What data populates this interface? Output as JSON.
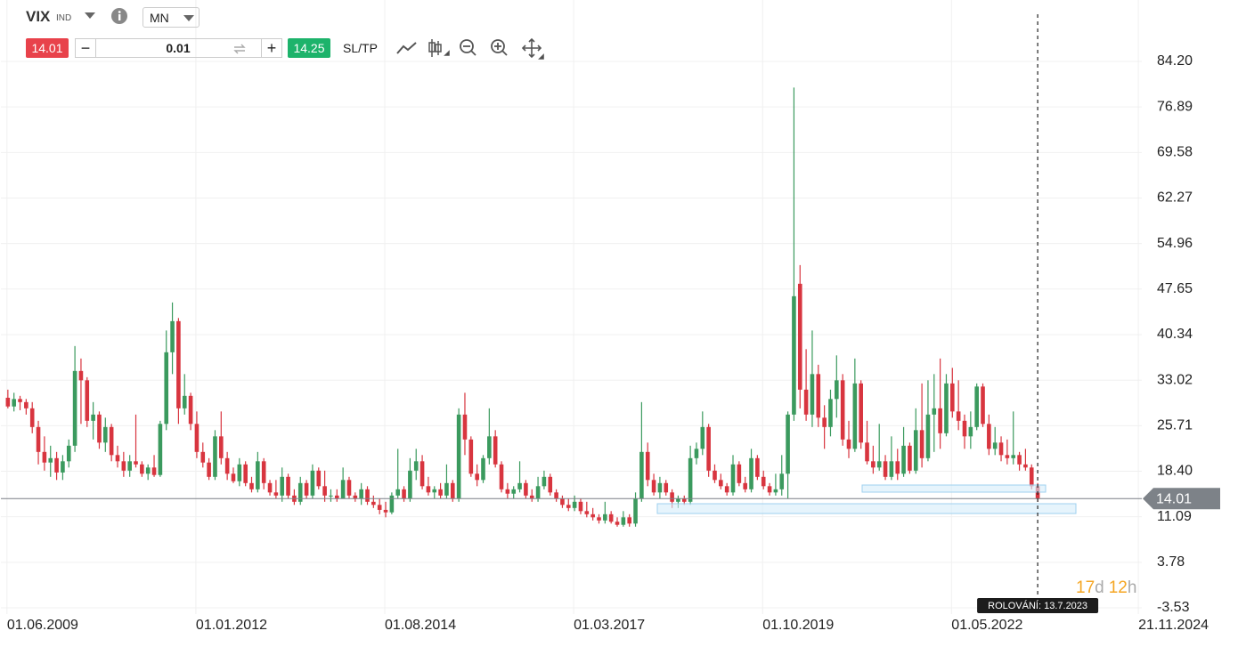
{
  "toolbar": {
    "symbol": "VIX",
    "symbol_type": "IND",
    "timeframe": "MN",
    "sell_price": "14.01",
    "quantity": "0.01",
    "buy_price": "14.25",
    "sl_tp": "SL/TP"
  },
  "chart_data": {
    "type": "candlestick",
    "x": [
      "01.06.2009",
      "01.07.2009",
      "01.08.2009",
      "01.09.2009",
      "01.10.2009",
      "01.11.2009",
      "01.12.2009",
      "01.01.2010",
      "01.02.2010",
      "01.03.2010",
      "01.04.2010",
      "01.05.2010",
      "01.06.2010",
      "01.07.2010",
      "01.08.2010",
      "01.09.2010",
      "01.10.2010",
      "01.11.2010",
      "01.12.2010",
      "01.01.2011",
      "01.02.2011",
      "01.03.2011",
      "01.04.2011",
      "01.05.2011",
      "01.06.2011",
      "01.07.2011",
      "01.08.2011",
      "01.09.2011",
      "01.10.2011",
      "01.11.2011",
      "01.12.2011",
      "01.01.2012",
      "01.02.2012",
      "01.03.2012",
      "01.04.2012",
      "01.05.2012",
      "01.06.2012",
      "01.07.2012",
      "01.08.2012",
      "01.09.2012",
      "01.10.2012",
      "01.11.2012",
      "01.12.2012",
      "01.01.2013",
      "01.02.2013",
      "01.03.2013",
      "01.04.2013",
      "01.05.2013",
      "01.06.2013",
      "01.07.2013",
      "01.08.2013",
      "01.09.2013",
      "01.10.2013",
      "01.11.2013",
      "01.12.2013",
      "01.01.2014",
      "01.02.2014",
      "01.03.2014",
      "01.04.2014",
      "01.05.2014",
      "01.06.2014",
      "01.07.2014",
      "01.08.2014",
      "01.09.2014",
      "01.10.2014",
      "01.11.2014",
      "01.12.2014",
      "01.01.2015",
      "01.02.2015",
      "01.03.2015",
      "01.04.2015",
      "01.05.2015",
      "01.06.2015",
      "01.07.2015",
      "01.08.2015",
      "01.09.2015",
      "01.10.2015",
      "01.11.2015",
      "01.12.2015",
      "01.01.2016",
      "01.02.2016",
      "01.03.2016",
      "01.04.2016",
      "01.05.2016",
      "01.06.2016",
      "01.07.2016",
      "01.08.2016",
      "01.09.2016",
      "01.10.2016",
      "01.11.2016",
      "01.12.2016",
      "01.01.2017",
      "01.02.2017",
      "01.03.2017",
      "01.04.2017",
      "01.05.2017",
      "01.06.2017",
      "01.07.2017",
      "01.08.2017",
      "01.09.2017",
      "01.10.2017",
      "01.11.2017",
      "01.12.2017",
      "01.01.2018",
      "01.02.2018",
      "01.03.2018",
      "01.04.2018",
      "01.05.2018",
      "01.06.2018",
      "01.07.2018",
      "01.08.2018",
      "01.09.2018",
      "01.10.2018",
      "01.11.2018",
      "01.12.2018",
      "01.01.2019",
      "01.02.2019",
      "01.03.2019",
      "01.04.2019",
      "01.05.2019",
      "01.06.2019",
      "01.07.2019",
      "01.08.2019",
      "01.09.2019",
      "01.10.2019",
      "01.11.2019",
      "01.12.2019",
      "01.01.2020",
      "01.02.2020",
      "01.03.2020",
      "01.04.2020",
      "01.05.2020",
      "01.06.2020",
      "01.07.2020",
      "01.08.2020",
      "01.09.2020",
      "01.10.2020",
      "01.11.2020",
      "01.12.2020",
      "01.01.2021",
      "01.02.2021",
      "01.03.2021",
      "01.04.2021",
      "01.05.2021",
      "01.06.2021",
      "01.07.2021",
      "01.08.2021",
      "01.09.2021",
      "01.10.2021",
      "01.11.2021",
      "01.12.2021",
      "01.01.2022",
      "01.02.2022",
      "01.03.2022",
      "01.04.2022",
      "01.05.2022",
      "01.06.2022",
      "01.07.2022",
      "01.08.2022",
      "01.09.2022",
      "01.10.2022",
      "01.11.2022",
      "01.12.2022",
      "01.01.2023",
      "01.02.2023",
      "01.03.2023",
      "01.04.2023",
      "01.05.2023",
      "01.06.2023",
      "01.07.2023"
    ],
    "open": [
      30.2,
      28.8,
      30.0,
      29.5,
      28.5,
      25.5,
      21.5,
      19.8,
      20.5,
      18.2,
      20.0,
      22.5,
      34.5,
      33.0,
      26.5,
      27.5,
      23.0,
      25.5,
      21.0,
      20.0,
      18.5,
      20.0,
      19.5,
      18.0,
      19.0,
      17.8,
      26.0,
      37.5,
      42.5,
      28.5,
      30.5,
      26.0,
      21.5,
      19.8,
      17.5,
      24.0,
      20.5,
      18.0,
      16.8,
      19.5,
      16.5,
      15.5,
      20.0,
      16.5,
      15.0,
      14.5,
      17.5,
      14.5,
      13.5,
      16.5,
      14.5,
      18.5,
      16.0,
      14.5,
      14.5,
      14.0,
      17.0,
      14.5,
      14.0,
      15.5,
      13.5,
      13.0,
      12.2,
      11.8,
      14.5,
      15.5,
      14.0,
      18.5,
      20.0,
      16.0,
      15.0,
      15.5,
      14.5,
      16.5,
      14.0,
      27.5,
      23.5,
      18.0,
      17.0,
      20.5,
      24.0,
      19.5,
      15.5,
      14.8,
      15.5,
      16.5,
      14.5,
      14.0,
      16.0,
      17.5,
      15.0,
      14.0,
      13.0,
      12.5,
      13.5,
      12.0,
      11.5,
      11.0,
      10.5,
      11.5,
      10.3,
      9.8,
      11.0,
      10.0,
      14.0,
      21.5,
      17.0,
      15.0,
      16.5,
      15.0,
      13.5,
      14.0,
      13.5,
      20.5,
      22.0,
      25.5,
      18.5,
      17.0,
      16.0,
      15.0,
      19.5,
      16.5,
      15.5,
      20.5,
      17.5,
      16.0,
      15.0,
      15.5,
      18.0,
      27.5,
      48.5,
      31.5,
      27.5,
      34.0,
      27.0,
      25.5,
      30.0,
      33.0,
      23.5,
      22.0,
      32.5,
      23.0,
      20.0,
      19.0,
      20.0,
      17.5,
      20.0,
      18.0,
      22.5,
      18.5,
      25.0,
      20.5,
      27.5,
      28.5,
      24.5,
      32.5,
      28.0,
      26.5,
      24.0,
      25.5,
      32.0,
      26.0,
      22.0,
      23.0,
      21.0,
      20.5,
      21.0,
      19.5,
      19.0,
      16.0
    ],
    "high": [
      31.5,
      31.0,
      30.5,
      30.0,
      29.5,
      26.5,
      24.0,
      22.5,
      21.5,
      21.0,
      23.5,
      38.5,
      36.5,
      33.5,
      29.5,
      28.0,
      27.0,
      26.0,
      22.5,
      21.5,
      21.0,
      27.5,
      20.0,
      19.5,
      21.0,
      26.5,
      41.0,
      45.5,
      43.0,
      34.0,
      31.0,
      28.0,
      23.0,
      20.5,
      25.0,
      28.0,
      21.5,
      19.0,
      20.5,
      20.0,
      17.5,
      21.5,
      20.5,
      17.0,
      17.0,
      19.0,
      18.0,
      15.5,
      17.5,
      17.0,
      19.5,
      19.0,
      18.5,
      15.5,
      15.5,
      19.0,
      17.5,
      15.0,
      16.5,
      16.0,
      14.5,
      14.0,
      13.5,
      15.0,
      22.0,
      16.0,
      20.5,
      22.0,
      21.0,
      17.5,
      16.0,
      16.5,
      19.5,
      17.0,
      28.5,
      31.0,
      24.0,
      19.5,
      21.0,
      28.5,
      25.0,
      20.0,
      16.5,
      16.0,
      20.0,
      17.0,
      15.5,
      17.5,
      18.5,
      18.0,
      15.5,
      14.5,
      14.0,
      14.5,
      14.0,
      13.5,
      12.5,
      11.5,
      13.5,
      12.0,
      11.0,
      12.0,
      11.5,
      15.0,
      29.5,
      23.0,
      18.0,
      17.5,
      17.0,
      15.5,
      14.5,
      14.5,
      22.5,
      23.0,
      28.0,
      26.0,
      19.5,
      18.0,
      16.5,
      21.0,
      20.0,
      17.5,
      22.0,
      21.0,
      18.5,
      16.5,
      18.0,
      21.0,
      28.0,
      80.0,
      51.5,
      38.0,
      41.0,
      35.5,
      29.0,
      31.5,
      37.0,
      34.0,
      26.5,
      36.5,
      33.0,
      26.5,
      22.5,
      26.0,
      21.0,
      24.0,
      22.0,
      25.5,
      23.0,
      28.5,
      32.5,
      33.0,
      34.0,
      36.5,
      34.0,
      35.0,
      33.0,
      27.5,
      28.0,
      32.5,
      32.5,
      27.5,
      25.5,
      24.0,
      23.5,
      28.0,
      21.5,
      22.0,
      19.5,
      16.5
    ],
    "low": [
      28.5,
      28.0,
      28.2,
      27.5,
      24.5,
      19.5,
      18.5,
      17.5,
      17.0,
      17.0,
      19.0,
      21.5,
      26.0,
      25.5,
      23.5,
      22.0,
      21.5,
      20.0,
      19.0,
      17.5,
      17.5,
      19.0,
      17.5,
      17.0,
      17.5,
      17.5,
      25.0,
      34.0,
      26.0,
      27.5,
      25.0,
      20.5,
      19.0,
      17.0,
      17.0,
      19.5,
      17.0,
      16.5,
      16.0,
      16.0,
      15.0,
      15.0,
      15.5,
      14.5,
      14.0,
      13.5,
      14.0,
      13.0,
      13.0,
      14.0,
      14.0,
      15.5,
      13.5,
      13.5,
      13.5,
      14.0,
      14.0,
      13.5,
      13.0,
      13.0,
      12.5,
      11.5,
      11.0,
      11.5,
      14.0,
      13.5,
      13.5,
      17.0,
      15.5,
      14.5,
      14.0,
      14.0,
      14.0,
      13.5,
      13.5,
      21.0,
      17.5,
      16.0,
      16.5,
      19.5,
      19.0,
      15.0,
      14.0,
      14.0,
      15.0,
      14.0,
      13.5,
      13.5,
      15.5,
      14.5,
      13.5,
      12.5,
      12.0,
      12.0,
      11.5,
      11.0,
      10.5,
      10.0,
      10.0,
      10.0,
      9.5,
      9.5,
      9.5,
      9.5,
      13.5,
      16.0,
      14.5,
      14.0,
      14.5,
      12.5,
      12.5,
      13.0,
      13.0,
      19.5,
      21.0,
      17.5,
      16.5,
      15.5,
      14.5,
      14.5,
      16.0,
      15.0,
      15.0,
      17.0,
      15.5,
      14.5,
      14.5,
      14.5,
      14.0,
      26.5,
      28.5,
      26.5,
      25.5,
      25.5,
      22.0,
      24.0,
      27.0,
      22.5,
      20.5,
      21.5,
      22.0,
      19.5,
      18.0,
      18.5,
      17.0,
      17.0,
      17.0,
      17.5,
      18.0,
      18.0,
      19.0,
      20.0,
      21.5,
      22.0,
      24.0,
      27.0,
      25.0,
      22.0,
      22.0,
      25.0,
      25.5,
      21.0,
      21.0,
      20.0,
      19.5,
      19.5,
      18.5,
      18.5,
      15.5,
      13.5
    ],
    "close": [
      28.8,
      30.0,
      29.5,
      28.5,
      25.5,
      21.5,
      19.8,
      20.5,
      18.2,
      20.0,
      22.5,
      34.5,
      33.0,
      26.5,
      27.5,
      23.0,
      25.5,
      21.0,
      20.0,
      18.5,
      20.0,
      19.5,
      18.0,
      19.0,
      17.8,
      26.0,
      37.5,
      42.5,
      28.5,
      30.5,
      26.0,
      21.5,
      19.8,
      17.5,
      24.0,
      20.5,
      18.0,
      16.8,
      19.5,
      16.5,
      15.5,
      20.0,
      16.5,
      15.0,
      14.5,
      17.5,
      14.5,
      13.5,
      16.5,
      14.5,
      18.5,
      16.0,
      14.5,
      14.5,
      14.0,
      17.0,
      14.5,
      14.0,
      15.5,
      13.5,
      13.0,
      12.2,
      11.8,
      14.5,
      15.5,
      14.0,
      18.5,
      20.0,
      16.0,
      15.0,
      15.5,
      14.5,
      16.5,
      14.0,
      27.5,
      23.5,
      18.0,
      17.0,
      20.5,
      24.0,
      19.5,
      15.5,
      14.8,
      15.5,
      16.5,
      14.5,
      14.0,
      16.0,
      17.5,
      15.0,
      14.0,
      13.0,
      12.5,
      13.5,
      12.0,
      11.5,
      11.0,
      10.5,
      11.5,
      10.3,
      9.8,
      11.0,
      10.0,
      14.0,
      21.5,
      17.0,
      15.0,
      16.5,
      15.0,
      13.5,
      14.0,
      13.5,
      20.5,
      22.0,
      25.5,
      18.5,
      17.0,
      16.0,
      15.0,
      19.5,
      16.5,
      15.5,
      20.5,
      17.5,
      16.0,
      15.0,
      15.5,
      18.0,
      27.5,
      46.5,
      31.5,
      27.5,
      34.0,
      27.0,
      25.5,
      30.0,
      33.0,
      23.5,
      22.0,
      32.5,
      23.0,
      20.0,
      19.0,
      20.0,
      17.5,
      20.0,
      18.0,
      22.5,
      18.5,
      25.0,
      20.5,
      27.5,
      28.5,
      24.5,
      32.5,
      28.0,
      26.5,
      24.0,
      25.5,
      32.0,
      26.0,
      22.0,
      23.0,
      21.0,
      20.5,
      21.0,
      19.5,
      19.0,
      16.0,
      14.01
    ],
    "up_color": "#3b9a5e",
    "down_color": "#d8353f",
    "last_price": 14.01,
    "xlim": [
      "01.05.2009",
      "08.12.2024"
    ],
    "xticks": [
      "01.06.2009",
      "01.01.2012",
      "01.08.2014",
      "01.03.2017",
      "01.10.2019",
      "01.05.2022",
      "21.11.2024"
    ],
    "ylim": [
      -4.53,
      94.06
    ],
    "yticks": [
      -3.53,
      3.78,
      11.09,
      {
        "value": 18.4,
        "label": "18.40"
      },
      25.71,
      33.02,
      40.34,
      47.65,
      54.96,
      62.27,
      69.58,
      76.89,
      {
        "value": 84.2,
        "label": "84.20"
      }
    ],
    "grid": true,
    "rollover_label": "ROLOVÁNÍ: 13.7.2023",
    "countdown": {
      "days": "17",
      "days_unit": "d",
      "hours": "12",
      "hours_unit": "h"
    }
  }
}
